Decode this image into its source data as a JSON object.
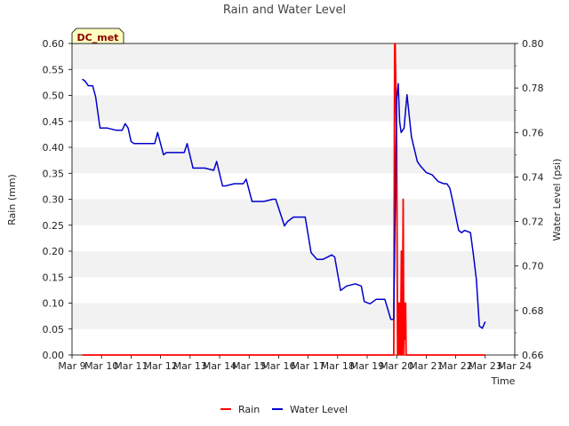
{
  "chart_data": {
    "type": "line",
    "title": "Rain and Water Level",
    "xlabel": "Time",
    "ylabel_left": "Rain (mm)",
    "ylabel_right": "Water Level (psi)",
    "badge": "DC_met",
    "x_ticks": [
      "Mar 9",
      "Mar 10",
      "Mar 11",
      "Mar 12",
      "Mar 13",
      "Mar 14",
      "Mar 15",
      "Mar 16",
      "Mar 17",
      "Mar 18",
      "Mar 19",
      "Mar 20",
      "Mar 21",
      "Mar 22",
      "Mar 23",
      "Mar 24"
    ],
    "xlim": [
      9,
      24
    ],
    "ylim_left": [
      0,
      0.6
    ],
    "ylim_right": [
      0.66,
      0.8
    ],
    "y_ticks_left": [
      "0.00",
      "0.05",
      "0.10",
      "0.15",
      "0.20",
      "0.25",
      "0.30",
      "0.35",
      "0.40",
      "0.45",
      "0.50",
      "0.55",
      "0.60"
    ],
    "y_ticks_right": [
      "0.66",
      "0.68",
      "0.70",
      "0.72",
      "0.74",
      "0.76",
      "0.78",
      "0.80"
    ],
    "grid": "horizontal bands",
    "legend_placement": "bottom-center",
    "series": [
      {
        "name": "Rain",
        "axis": "left",
        "color": "#ff0000",
        "x": [
          9.35,
          19.9,
          19.93,
          19.95,
          20.0,
          20.03,
          20.06,
          20.08,
          20.1,
          20.13,
          20.16,
          20.18,
          20.2,
          20.22,
          20.24,
          20.26,
          20.28,
          20.3,
          20.32,
          20.34,
          23.0
        ],
        "y": [
          0,
          0,
          0.6,
          0.6,
          0.4,
          0,
          0.1,
          0,
          0.1,
          0,
          0.2,
          0,
          0.1,
          0.3,
          0,
          0.1,
          0.03,
          0.1,
          0,
          0,
          0
        ]
      },
      {
        "name": "Water Level",
        "axis": "right",
        "color": "#0000cc",
        "x": [
          9.35,
          9.45,
          9.55,
          9.7,
          9.8,
          9.95,
          10.2,
          10.5,
          10.7,
          10.8,
          10.9,
          11.0,
          11.1,
          11.3,
          11.5,
          11.8,
          11.9,
          12.1,
          12.2,
          12.5,
          12.8,
          12.9,
          13.1,
          13.2,
          13.5,
          13.8,
          13.9,
          14.1,
          14.2,
          14.5,
          14.8,
          14.9,
          15.1,
          15.2,
          15.5,
          15.8,
          15.9,
          16.2,
          16.3,
          16.5,
          16.7,
          16.9,
          17.1,
          17.3,
          17.5,
          17.8,
          17.9,
          18.1,
          18.3,
          18.6,
          18.8,
          18.9,
          19.1,
          19.3,
          19.6,
          19.8,
          19.9,
          20.0,
          20.05,
          20.1,
          20.15,
          20.25,
          20.3,
          20.35,
          20.5,
          20.7,
          20.8,
          21.0,
          21.2,
          21.4,
          21.6,
          21.7,
          21.8,
          21.9,
          22.1,
          22.2,
          22.3,
          22.5,
          22.6,
          22.7,
          22.8,
          22.9,
          23.0
        ],
        "y": [
          0.784,
          0.783,
          0.781,
          0.781,
          0.776,
          0.762,
          0.762,
          0.761,
          0.761,
          0.764,
          0.762,
          0.756,
          0.755,
          0.755,
          0.755,
          0.755,
          0.76,
          0.75,
          0.751,
          0.751,
          0.751,
          0.755,
          0.744,
          0.744,
          0.744,
          0.743,
          0.747,
          0.736,
          0.736,
          0.737,
          0.737,
          0.739,
          0.729,
          0.729,
          0.729,
          0.73,
          0.73,
          0.718,
          0.72,
          0.722,
          0.722,
          0.722,
          0.706,
          0.703,
          0.703,
          0.705,
          0.704,
          0.689,
          0.691,
          0.692,
          0.691,
          0.684,
          0.683,
          0.685,
          0.685,
          0.676,
          0.676,
          0.775,
          0.782,
          0.765,
          0.76,
          0.762,
          0.77,
          0.777,
          0.758,
          0.747,
          0.745,
          0.742,
          0.741,
          0.738,
          0.737,
          0.737,
          0.735,
          0.729,
          0.716,
          0.715,
          0.716,
          0.715,
          0.705,
          0.694,
          0.673,
          0.672,
          0.675
        ]
      }
    ]
  }
}
